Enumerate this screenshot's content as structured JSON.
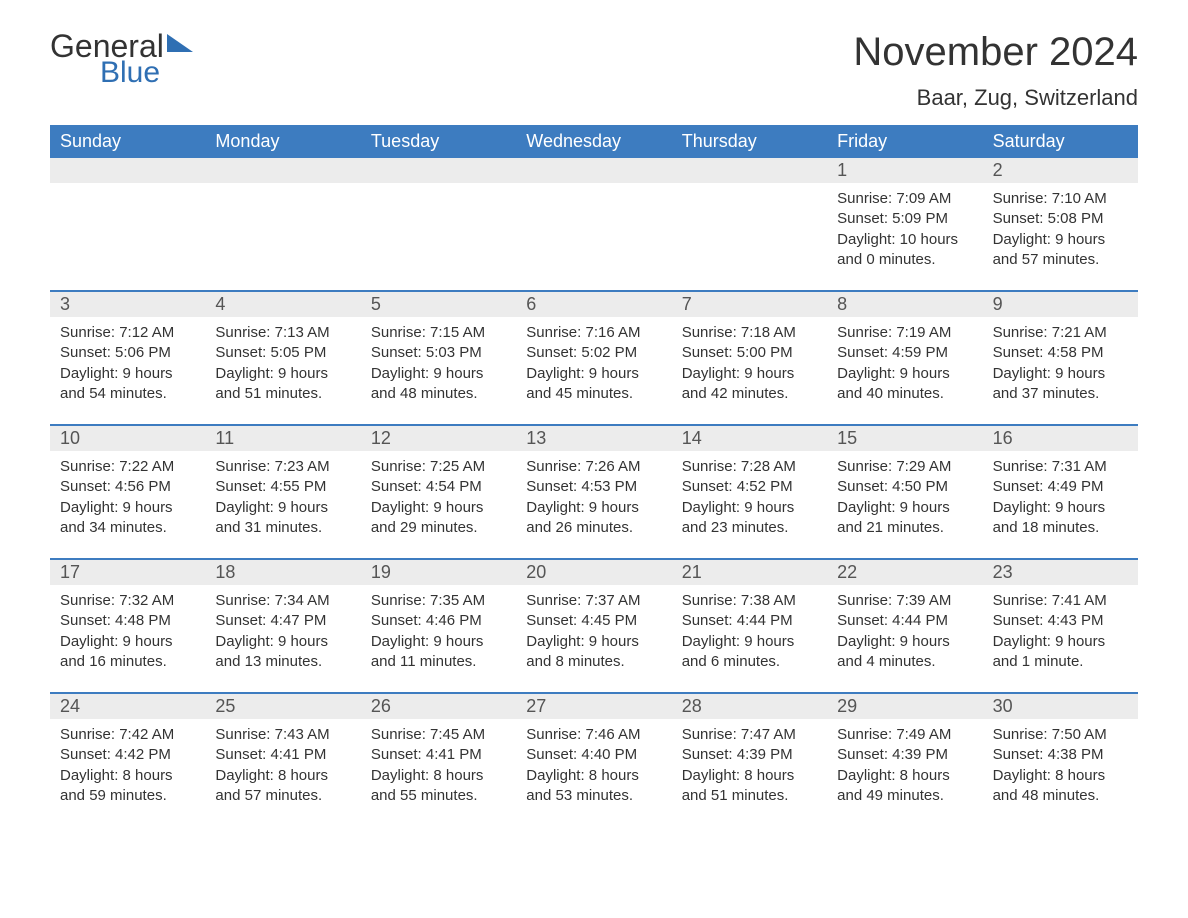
{
  "logo": {
    "word1": "General",
    "word2": "Blue"
  },
  "title": "November 2024",
  "location": "Baar, Zug, Switzerland",
  "colors": {
    "header_bg": "#3d7cc0",
    "header_text": "#ffffff",
    "row_divider": "#3d7cc0",
    "daynum_bg": "#ececec",
    "daynum_text": "#555555",
    "body_text": "#333333",
    "background": "#ffffff",
    "logo_gray": "#333333",
    "logo_blue": "#2f6fb3"
  },
  "fonts": {
    "title_fontsize": 40,
    "location_fontsize": 22,
    "weekday_fontsize": 18,
    "daynum_fontsize": 18,
    "body_fontsize": 15,
    "family": "Arial"
  },
  "weekdays": [
    "Sunday",
    "Monday",
    "Tuesday",
    "Wednesday",
    "Thursday",
    "Friday",
    "Saturday"
  ],
  "weeks": [
    [
      {},
      {},
      {},
      {},
      {},
      {
        "num": "1",
        "sunrise": "Sunrise: 7:09 AM",
        "sunset": "Sunset: 5:09 PM",
        "daylight1": "Daylight: 10 hours",
        "daylight2": "and 0 minutes."
      },
      {
        "num": "2",
        "sunrise": "Sunrise: 7:10 AM",
        "sunset": "Sunset: 5:08 PM",
        "daylight1": "Daylight: 9 hours",
        "daylight2": "and 57 minutes."
      }
    ],
    [
      {
        "num": "3",
        "sunrise": "Sunrise: 7:12 AM",
        "sunset": "Sunset: 5:06 PM",
        "daylight1": "Daylight: 9 hours",
        "daylight2": "and 54 minutes."
      },
      {
        "num": "4",
        "sunrise": "Sunrise: 7:13 AM",
        "sunset": "Sunset: 5:05 PM",
        "daylight1": "Daylight: 9 hours",
        "daylight2": "and 51 minutes."
      },
      {
        "num": "5",
        "sunrise": "Sunrise: 7:15 AM",
        "sunset": "Sunset: 5:03 PM",
        "daylight1": "Daylight: 9 hours",
        "daylight2": "and 48 minutes."
      },
      {
        "num": "6",
        "sunrise": "Sunrise: 7:16 AM",
        "sunset": "Sunset: 5:02 PM",
        "daylight1": "Daylight: 9 hours",
        "daylight2": "and 45 minutes."
      },
      {
        "num": "7",
        "sunrise": "Sunrise: 7:18 AM",
        "sunset": "Sunset: 5:00 PM",
        "daylight1": "Daylight: 9 hours",
        "daylight2": "and 42 minutes."
      },
      {
        "num": "8",
        "sunrise": "Sunrise: 7:19 AM",
        "sunset": "Sunset: 4:59 PM",
        "daylight1": "Daylight: 9 hours",
        "daylight2": "and 40 minutes."
      },
      {
        "num": "9",
        "sunrise": "Sunrise: 7:21 AM",
        "sunset": "Sunset: 4:58 PM",
        "daylight1": "Daylight: 9 hours",
        "daylight2": "and 37 minutes."
      }
    ],
    [
      {
        "num": "10",
        "sunrise": "Sunrise: 7:22 AM",
        "sunset": "Sunset: 4:56 PM",
        "daylight1": "Daylight: 9 hours",
        "daylight2": "and 34 minutes."
      },
      {
        "num": "11",
        "sunrise": "Sunrise: 7:23 AM",
        "sunset": "Sunset: 4:55 PM",
        "daylight1": "Daylight: 9 hours",
        "daylight2": "and 31 minutes."
      },
      {
        "num": "12",
        "sunrise": "Sunrise: 7:25 AM",
        "sunset": "Sunset: 4:54 PM",
        "daylight1": "Daylight: 9 hours",
        "daylight2": "and 29 minutes."
      },
      {
        "num": "13",
        "sunrise": "Sunrise: 7:26 AM",
        "sunset": "Sunset: 4:53 PM",
        "daylight1": "Daylight: 9 hours",
        "daylight2": "and 26 minutes."
      },
      {
        "num": "14",
        "sunrise": "Sunrise: 7:28 AM",
        "sunset": "Sunset: 4:52 PM",
        "daylight1": "Daylight: 9 hours",
        "daylight2": "and 23 minutes."
      },
      {
        "num": "15",
        "sunrise": "Sunrise: 7:29 AM",
        "sunset": "Sunset: 4:50 PM",
        "daylight1": "Daylight: 9 hours",
        "daylight2": "and 21 minutes."
      },
      {
        "num": "16",
        "sunrise": "Sunrise: 7:31 AM",
        "sunset": "Sunset: 4:49 PM",
        "daylight1": "Daylight: 9 hours",
        "daylight2": "and 18 minutes."
      }
    ],
    [
      {
        "num": "17",
        "sunrise": "Sunrise: 7:32 AM",
        "sunset": "Sunset: 4:48 PM",
        "daylight1": "Daylight: 9 hours",
        "daylight2": "and 16 minutes."
      },
      {
        "num": "18",
        "sunrise": "Sunrise: 7:34 AM",
        "sunset": "Sunset: 4:47 PM",
        "daylight1": "Daylight: 9 hours",
        "daylight2": "and 13 minutes."
      },
      {
        "num": "19",
        "sunrise": "Sunrise: 7:35 AM",
        "sunset": "Sunset: 4:46 PM",
        "daylight1": "Daylight: 9 hours",
        "daylight2": "and 11 minutes."
      },
      {
        "num": "20",
        "sunrise": "Sunrise: 7:37 AM",
        "sunset": "Sunset: 4:45 PM",
        "daylight1": "Daylight: 9 hours",
        "daylight2": "and 8 minutes."
      },
      {
        "num": "21",
        "sunrise": "Sunrise: 7:38 AM",
        "sunset": "Sunset: 4:44 PM",
        "daylight1": "Daylight: 9 hours",
        "daylight2": "and 6 minutes."
      },
      {
        "num": "22",
        "sunrise": "Sunrise: 7:39 AM",
        "sunset": "Sunset: 4:44 PM",
        "daylight1": "Daylight: 9 hours",
        "daylight2": "and 4 minutes."
      },
      {
        "num": "23",
        "sunrise": "Sunrise: 7:41 AM",
        "sunset": "Sunset: 4:43 PM",
        "daylight1": "Daylight: 9 hours",
        "daylight2": "and 1 minute."
      }
    ],
    [
      {
        "num": "24",
        "sunrise": "Sunrise: 7:42 AM",
        "sunset": "Sunset: 4:42 PM",
        "daylight1": "Daylight: 8 hours",
        "daylight2": "and 59 minutes."
      },
      {
        "num": "25",
        "sunrise": "Sunrise: 7:43 AM",
        "sunset": "Sunset: 4:41 PM",
        "daylight1": "Daylight: 8 hours",
        "daylight2": "and 57 minutes."
      },
      {
        "num": "26",
        "sunrise": "Sunrise: 7:45 AM",
        "sunset": "Sunset: 4:41 PM",
        "daylight1": "Daylight: 8 hours",
        "daylight2": "and 55 minutes."
      },
      {
        "num": "27",
        "sunrise": "Sunrise: 7:46 AM",
        "sunset": "Sunset: 4:40 PM",
        "daylight1": "Daylight: 8 hours",
        "daylight2": "and 53 minutes."
      },
      {
        "num": "28",
        "sunrise": "Sunrise: 7:47 AM",
        "sunset": "Sunset: 4:39 PM",
        "daylight1": "Daylight: 8 hours",
        "daylight2": "and 51 minutes."
      },
      {
        "num": "29",
        "sunrise": "Sunrise: 7:49 AM",
        "sunset": "Sunset: 4:39 PM",
        "daylight1": "Daylight: 8 hours",
        "daylight2": "and 49 minutes."
      },
      {
        "num": "30",
        "sunrise": "Sunrise: 7:50 AM",
        "sunset": "Sunset: 4:38 PM",
        "daylight1": "Daylight: 8 hours",
        "daylight2": "and 48 minutes."
      }
    ]
  ]
}
